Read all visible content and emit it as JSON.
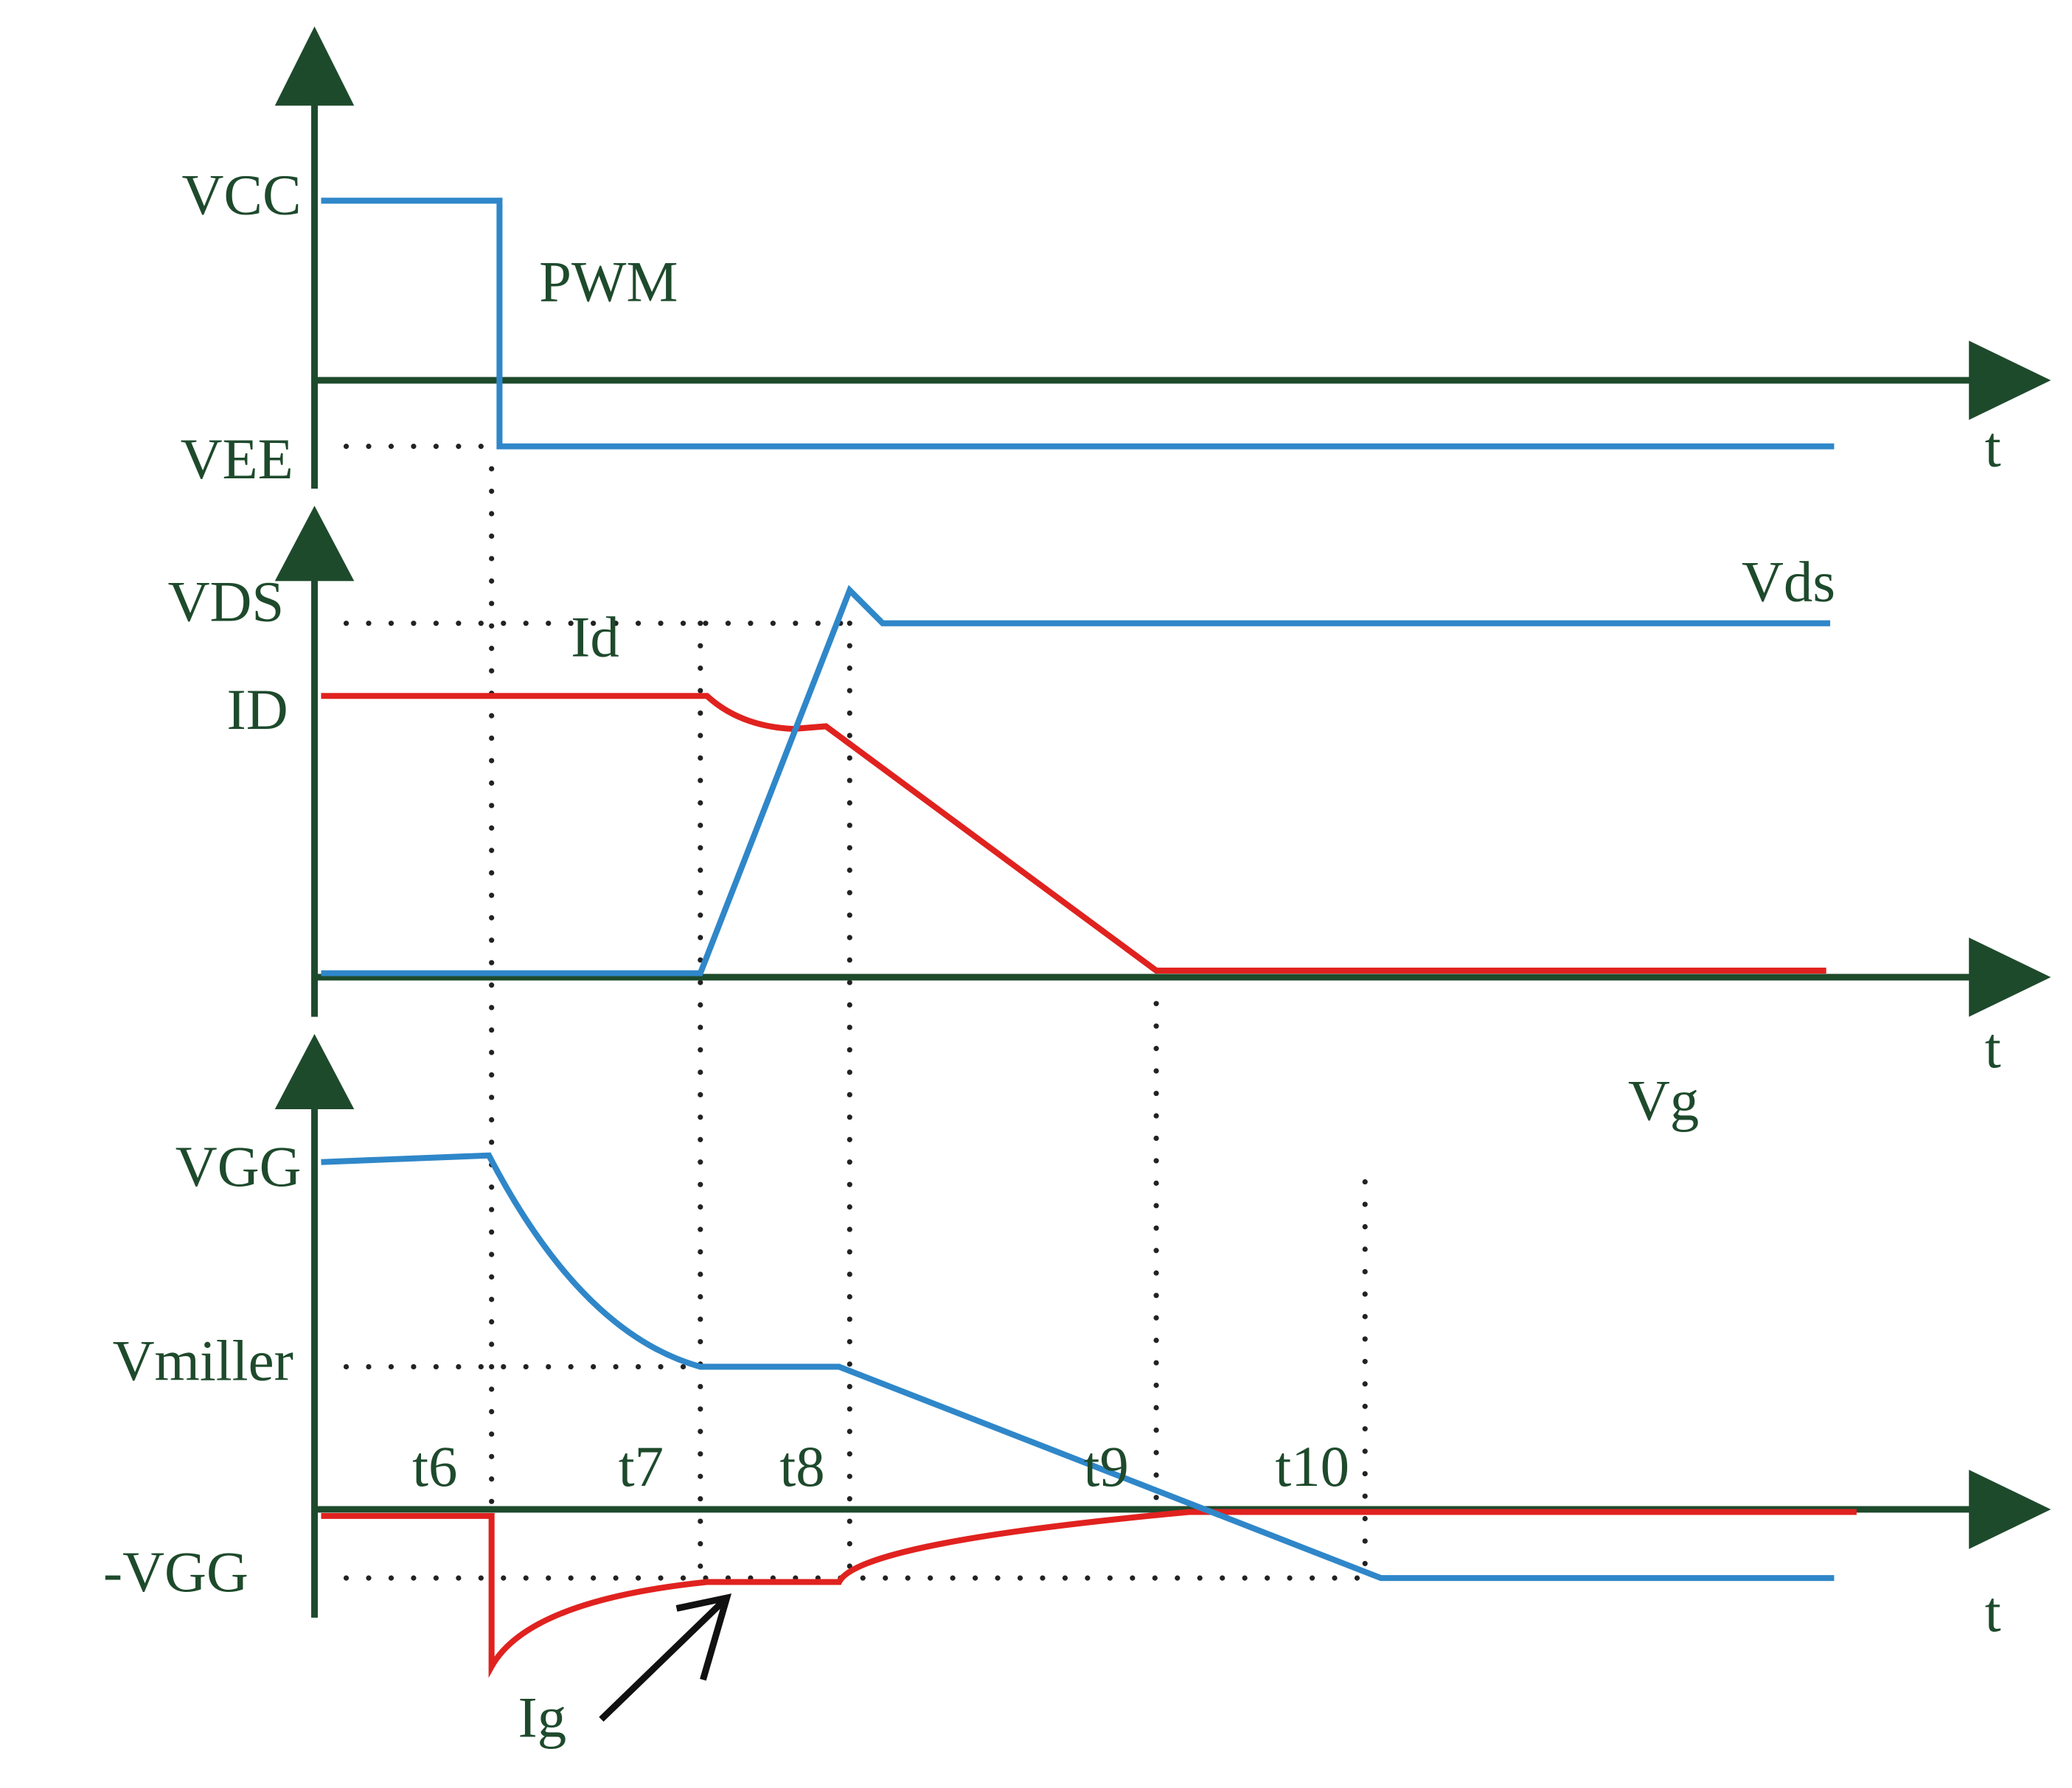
{
  "top": {
    "vcc": "VCC",
    "pwm": "PWM",
    "vee": "VEE",
    "axis": "t"
  },
  "middle": {
    "vds_level": "VDS",
    "id": "Id",
    "vds": "Vds",
    "id_level": "ID",
    "axis": "t"
  },
  "bottom": {
    "vg": "Vg",
    "vgg": "VGG",
    "vmiller": "Vmiller",
    "times": [
      "t6",
      "t7",
      "t8",
      "t9",
      "t10"
    ],
    "neg_vgg": "-VGG",
    "ig": "Ig",
    "axis": "t"
  }
}
